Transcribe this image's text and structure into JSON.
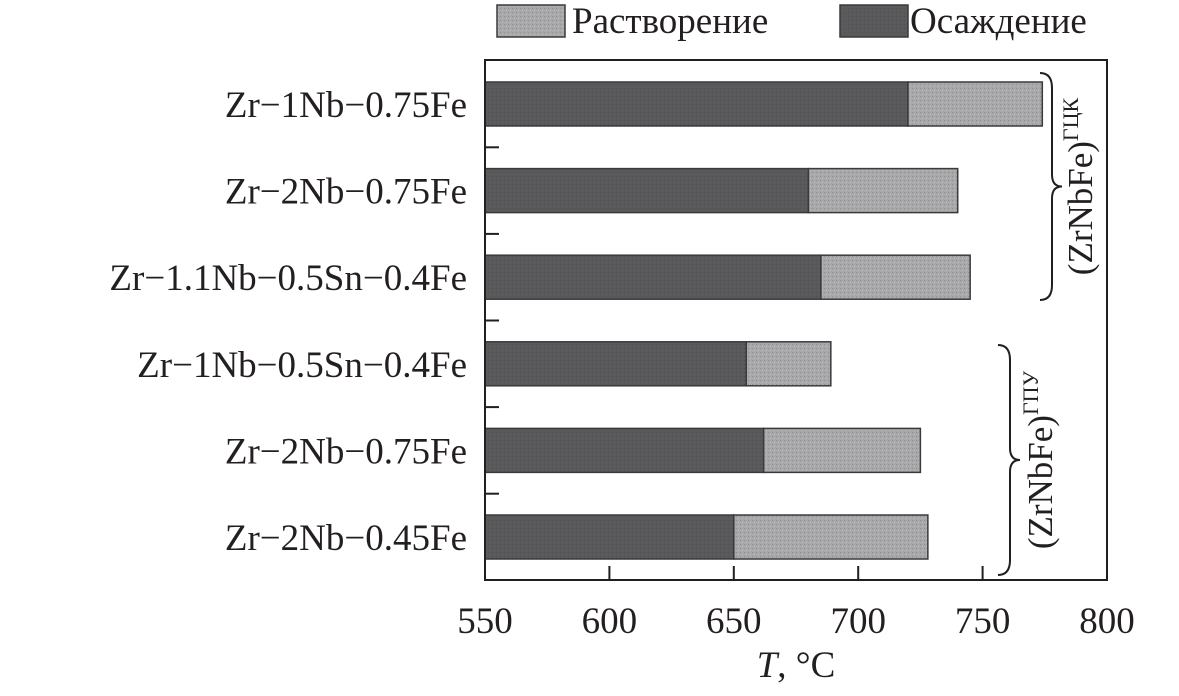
{
  "chart_data": {
    "type": "bar",
    "orientation": "horizontal",
    "stacked": true,
    "categories": [
      "Zr−1Nb−0.75Fe",
      "Zr−2Nb−0.75Fe",
      "Zr−1.1Nb−0.5Sn−0.4Fe",
      "Zr−1Nb−0.5Sn−0.4Fe",
      "Zr−2Nb−0.75Fe",
      "Zr−2Nb−0.45Fe"
    ],
    "series": [
      {
        "name": "Осаждение",
        "color": "#5a5a5c",
        "start": [
          550,
          550,
          550,
          550,
          550,
          550
        ],
        "end": [
          720,
          680,
          685,
          655,
          662,
          650
        ]
      },
      {
        "name": "Растворение",
        "color": "#a6a6a8",
        "start": [
          720,
          680,
          685,
          655,
          662,
          650
        ],
        "end": [
          774,
          740,
          745,
          689,
          725,
          728
        ]
      }
    ],
    "legend_order": [
      "Растворение",
      "Осаждение"
    ],
    "legend_position": "top",
    "xlabel_italic": "T",
    "xlabel_rest": ", °C",
    "xlim": [
      550,
      800
    ],
    "xticks": [
      "550",
      "600",
      "650",
      "700",
      "750",
      "800"
    ],
    "grid": false,
    "groups": [
      {
        "label": "(ZrNbFe)",
        "superscript": "ГЦК",
        "rows": [
          0,
          1,
          2
        ]
      },
      {
        "label": "(ZrNbFe)",
        "superscript": "ГПУ",
        "rows": [
          3,
          4,
          5
        ]
      }
    ]
  }
}
